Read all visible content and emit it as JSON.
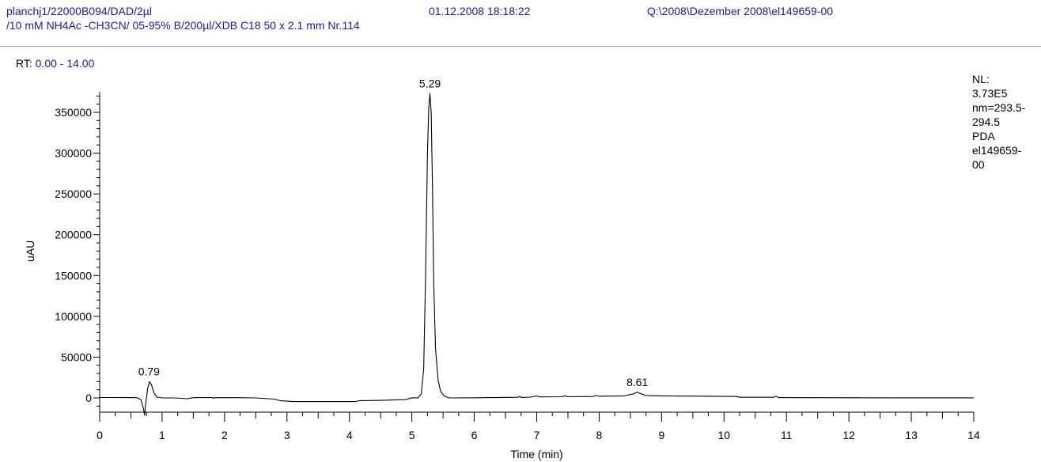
{
  "header": {
    "sample": "planchj1/22000B094/DAD/2µl",
    "datetime": "01.12.2008 18:18:22",
    "path": "Q:\\2008\\Dezember 2008\\el149659-00",
    "method": "/10 mM NH4Ac -CH3CN/ 05-95% B/200µl/XDB C18 50 x 2.1 mm Nr.114"
  },
  "rt_range": {
    "label": "RT:",
    "value": "0.00 - 14.00"
  },
  "info": [
    "NL:",
    "3.73E5",
    "nm=293.5-",
    "294.5",
    "PDA",
    "el149659-",
    "00"
  ],
  "chart_data": {
    "type": "line",
    "xlabel": "Time (min)",
    "ylabel": "uAU",
    "xlim": [
      0,
      14
    ],
    "ylim": [
      -30000,
      375000
    ],
    "x_ticks": [
      0,
      1,
      2,
      3,
      4,
      5,
      6,
      7,
      8,
      9,
      10,
      11,
      12,
      13,
      14
    ],
    "y_ticks": [
      0,
      50000,
      100000,
      150000,
      200000,
      250000,
      300000,
      350000
    ],
    "line_color": "#000000",
    "peak_labels": [
      {
        "x": 0.79,
        "y": 20000,
        "label": "0.79"
      },
      {
        "x": 5.29,
        "y": 373000,
        "label": "5.29"
      },
      {
        "x": 8.61,
        "y": 7000,
        "label": "8.61"
      }
    ],
    "trace": [
      [
        0,
        500
      ],
      [
        0.2,
        500
      ],
      [
        0.4,
        400
      ],
      [
        0.6,
        300
      ],
      [
        0.66,
        -2000
      ],
      [
        0.7,
        -13000
      ],
      [
        0.72,
        -21000
      ],
      [
        0.74,
        -5000
      ],
      [
        0.77,
        12000
      ],
      [
        0.8,
        20000
      ],
      [
        0.83,
        16000
      ],
      [
        0.87,
        6000
      ],
      [
        0.92,
        1000
      ],
      [
        1.0,
        0
      ],
      [
        1.2,
        0
      ],
      [
        1.4,
        -1000
      ],
      [
        1.5,
        300
      ],
      [
        1.8,
        500
      ],
      [
        1.82,
        -500
      ],
      [
        1.85,
        300
      ],
      [
        2.2,
        300
      ],
      [
        2.5,
        0
      ],
      [
        2.6,
        -500
      ],
      [
        2.8,
        -1500
      ],
      [
        2.9,
        -3500
      ],
      [
        3.1,
        -4500
      ],
      [
        3.5,
        -4500
      ],
      [
        4.1,
        -4500
      ],
      [
        4.15,
        -3500
      ],
      [
        4.5,
        -3000
      ],
      [
        4.9,
        -2000
      ],
      [
        5.0,
        200
      ],
      [
        5.1,
        0
      ],
      [
        5.15,
        5000
      ],
      [
        5.19,
        35000
      ],
      [
        5.22,
        150000
      ],
      [
        5.25,
        300000
      ],
      [
        5.27,
        355000
      ],
      [
        5.29,
        373000
      ],
      [
        5.31,
        350000
      ],
      [
        5.33,
        260000
      ],
      [
        5.35,
        140000
      ],
      [
        5.38,
        60000
      ],
      [
        5.42,
        22000
      ],
      [
        5.46,
        8000
      ],
      [
        5.52,
        2000
      ],
      [
        5.6,
        0
      ],
      [
        6.0,
        200
      ],
      [
        6.7,
        800
      ],
      [
        6.72,
        1800
      ],
      [
        6.75,
        600
      ],
      [
        6.9,
        1000
      ],
      [
        7.0,
        2400
      ],
      [
        7.05,
        1300
      ],
      [
        7.4,
        1500
      ],
      [
        7.45,
        2600
      ],
      [
        7.5,
        1500
      ],
      [
        7.9,
        1700
      ],
      [
        7.95,
        3000
      ],
      [
        8.0,
        2000
      ],
      [
        8.4,
        2500
      ],
      [
        8.55,
        5000
      ],
      [
        8.61,
        7000
      ],
      [
        8.67,
        5000
      ],
      [
        8.75,
        3000
      ],
      [
        9.0,
        2500
      ],
      [
        9.5,
        2200
      ],
      [
        10.2,
        1700
      ],
      [
        10.25,
        800
      ],
      [
        10.8,
        800
      ],
      [
        10.83,
        2000
      ],
      [
        10.88,
        400
      ],
      [
        11.5,
        300
      ],
      [
        12.0,
        200
      ],
      [
        13.0,
        100
      ],
      [
        14.0,
        100
      ]
    ]
  }
}
